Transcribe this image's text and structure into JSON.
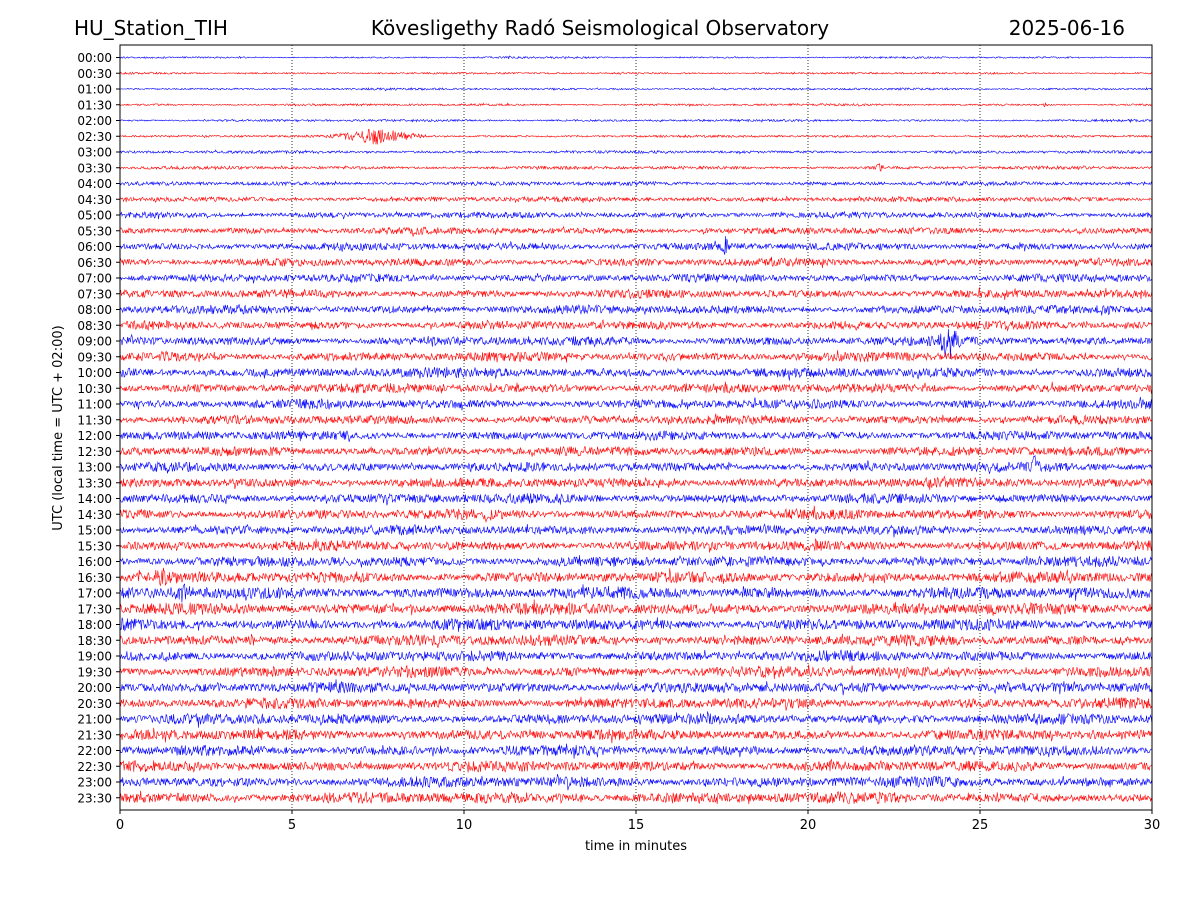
{
  "chart_data": {
    "type": "line",
    "station": "HU_Station_TIH",
    "title": "Kövesligethy Radó Seismological Observatory",
    "date": "2025-06-16",
    "xlabel": "time in minutes",
    "ylabel": "UTC (local time = UTC + 02:00)",
    "xlim": [
      0,
      30
    ],
    "x_ticks": [
      0,
      5,
      10,
      15,
      20,
      25,
      30
    ],
    "x_tick_labels": [
      "0",
      "5",
      "10",
      "15",
      "20",
      "25",
      "30"
    ],
    "grid": "vertical dotted lines at major x ticks",
    "trace_colors": [
      "#0000ff",
      "#ff0000"
    ],
    "rows": [
      {
        "label": "00:00",
        "amplitude": 1.0,
        "events": [
          {
            "minute": 11.3,
            "amplitude": 2.5,
            "duration": 0.3
          }
        ]
      },
      {
        "label": "00:30",
        "amplitude": 1.1,
        "events": []
      },
      {
        "label": "01:00",
        "amplitude": 1.2,
        "events": []
      },
      {
        "label": "01:30",
        "amplitude": 1.2,
        "events": [
          {
            "minute": 26.9,
            "amplitude": 2.5,
            "duration": 0.2
          }
        ]
      },
      {
        "label": "02:00",
        "amplitude": 1.3,
        "events": []
      },
      {
        "label": "02:30",
        "amplitude": 1.3,
        "events": [
          {
            "minute": 7.5,
            "amplitude": 9,
            "duration": 2.5
          }
        ]
      },
      {
        "label": "03:00",
        "amplitude": 1.6,
        "events": []
      },
      {
        "label": "03:30",
        "amplitude": 1.8,
        "events": [
          {
            "minute": 22.1,
            "amplitude": 5,
            "duration": 0.4
          }
        ]
      },
      {
        "label": "04:00",
        "amplitude": 2.2,
        "events": []
      },
      {
        "label": "04:30",
        "amplitude": 2.8,
        "events": []
      },
      {
        "label": "05:00",
        "amplitude": 3.4,
        "events": []
      },
      {
        "label": "05:30",
        "amplitude": 3.8,
        "events": []
      },
      {
        "label": "06:00",
        "amplitude": 4.2,
        "events": [
          {
            "minute": 17.6,
            "amplitude": 11,
            "duration": 0.3
          }
        ]
      },
      {
        "label": "06:30",
        "amplitude": 4.4,
        "events": []
      },
      {
        "label": "07:00",
        "amplitude": 4.6,
        "events": []
      },
      {
        "label": "07:30",
        "amplitude": 4.6,
        "events": []
      },
      {
        "label": "08:00",
        "amplitude": 4.8,
        "events": []
      },
      {
        "label": "08:30",
        "amplitude": 4.8,
        "events": []
      },
      {
        "label": "09:00",
        "amplitude": 5.0,
        "events": [
          {
            "minute": 24.1,
            "amplitude": 26,
            "duration": 0.6
          }
        ]
      },
      {
        "label": "09:30",
        "amplitude": 5.2,
        "events": []
      },
      {
        "label": "10:00",
        "amplitude": 5.5,
        "events": []
      },
      {
        "label": "10:30",
        "amplitude": 5.3,
        "events": []
      },
      {
        "label": "11:00",
        "amplitude": 5.2,
        "events": []
      },
      {
        "label": "11:30",
        "amplitude": 5.0,
        "events": []
      },
      {
        "label": "12:00",
        "amplitude": 5.0,
        "events": []
      },
      {
        "label": "12:30",
        "amplitude": 5.2,
        "events": []
      },
      {
        "label": "13:00",
        "amplitude": 5.3,
        "events": [
          {
            "minute": 26.6,
            "amplitude": 18,
            "duration": 0.3
          }
        ]
      },
      {
        "label": "13:30",
        "amplitude": 5.4,
        "events": []
      },
      {
        "label": "14:00",
        "amplitude": 5.5,
        "events": []
      },
      {
        "label": "14:30",
        "amplitude": 5.6,
        "events": []
      },
      {
        "label": "15:00",
        "amplitude": 5.6,
        "events": []
      },
      {
        "label": "15:30",
        "amplitude": 5.7,
        "events": []
      },
      {
        "label": "16:00",
        "amplitude": 5.8,
        "events": []
      },
      {
        "label": "16:30",
        "amplitude": 6.2,
        "events": [
          {
            "minute": 1.3,
            "amplitude": 11,
            "duration": 1.5
          }
        ]
      },
      {
        "label": "17:00",
        "amplitude": 6.5,
        "events": [
          {
            "minute": 1.8,
            "amplitude": 10,
            "duration": 1.5
          }
        ]
      },
      {
        "label": "17:30",
        "amplitude": 6.5,
        "events": []
      },
      {
        "label": "18:00",
        "amplitude": 6.3,
        "events": []
      },
      {
        "label": "18:30",
        "amplitude": 6.2,
        "events": []
      },
      {
        "label": "19:00",
        "amplitude": 6.0,
        "events": []
      },
      {
        "label": "19:30",
        "amplitude": 6.0,
        "events": []
      },
      {
        "label": "20:00",
        "amplitude": 5.8,
        "events": []
      },
      {
        "label": "20:30",
        "amplitude": 5.8,
        "events": []
      },
      {
        "label": "21:00",
        "amplitude": 5.8,
        "events": []
      },
      {
        "label": "21:30",
        "amplitude": 5.9,
        "events": []
      },
      {
        "label": "22:00",
        "amplitude": 5.9,
        "events": []
      },
      {
        "label": "22:30",
        "amplitude": 6.0,
        "events": []
      },
      {
        "label": "23:00",
        "amplitude": 6.0,
        "events": []
      },
      {
        "label": "23:30",
        "amplitude": 6.3,
        "events": []
      }
    ]
  }
}
